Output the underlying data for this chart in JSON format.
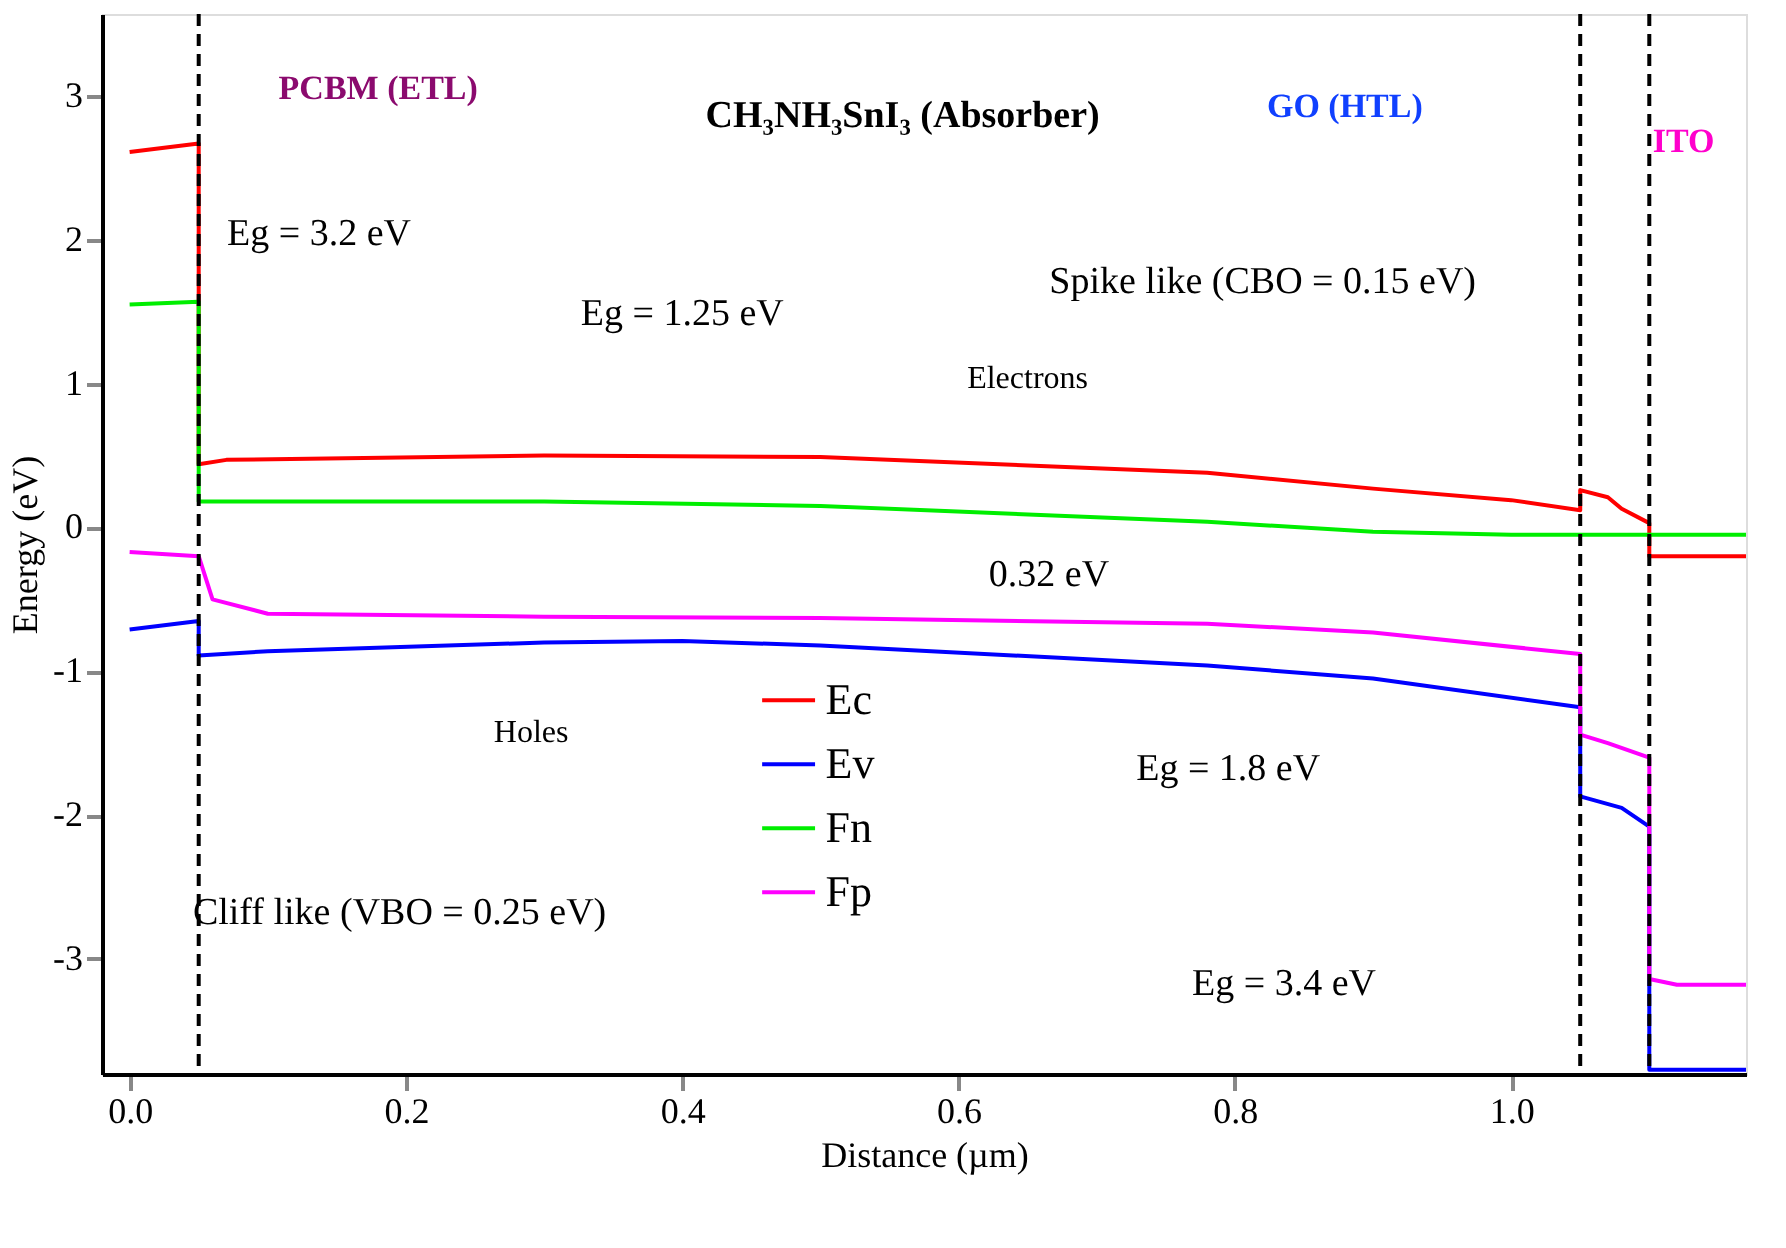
{
  "chart_data": {
    "type": "line",
    "xlabel": "Distance (µm)",
    "ylabel": "Energy (eV)",
    "xlim": [
      -0.02,
      1.17
    ],
    "ylim": [
      -3.8,
      3.57
    ],
    "xticks": [
      {
        "value": 0,
        "label": "0.0"
      },
      0.2,
      0.4,
      0.6,
      0.8,
      {
        "value": 1,
        "label": "1.0"
      }
    ],
    "yticks": [
      -3,
      -2,
      -1,
      0,
      1,
      2,
      3
    ],
    "grid": false,
    "legend": "bottom",
    "line_style": "solid",
    "marker": "none",
    "series": [
      {
        "name": "Ec",
        "color": "#ff0000",
        "x": [
          0,
          0.05,
          0.05,
          0.07,
          0.3,
          0.5,
          0.78,
          0.9,
          1.0,
          1.05,
          1.05,
          1.07,
          1.08,
          1.1,
          1.1,
          1.17
        ],
        "values": [
          2.61,
          2.67,
          0.44,
          0.47,
          0.5,
          0.49,
          0.38,
          0.27,
          0.19,
          0.12,
          0.26,
          0.21,
          0.13,
          0.03,
          -0.2,
          -0.2
        ]
      },
      {
        "name": "Ev",
        "color": "#0000ff",
        "x": [
          0,
          0.05,
          0.05,
          0.1,
          0.3,
          0.4,
          0.5,
          0.78,
          0.9,
          1.05,
          1.05,
          1.08,
          1.1,
          1.1,
          1.17
        ],
        "values": [
          -0.71,
          -0.65,
          -0.89,
          -0.86,
          -0.8,
          -0.79,
          -0.82,
          -0.96,
          -1.05,
          -1.25,
          -1.87,
          -1.95,
          -2.08,
          -3.77,
          -3.77
        ]
      },
      {
        "name": "Fn",
        "color": "#00ee00",
        "x": [
          0,
          0.05,
          0.05,
          0.3,
          0.5,
          0.78,
          0.9,
          1.0,
          1.17
        ],
        "values": [
          1.55,
          1.57,
          0.18,
          0.18,
          0.15,
          0.04,
          -0.03,
          -0.05,
          -0.05
        ]
      },
      {
        "name": "Fp",
        "color": "#ff00ff",
        "x": [
          0,
          0.05,
          0.06,
          0.1,
          0.3,
          0.5,
          0.78,
          0.9,
          1.05,
          1.05,
          1.07,
          1.1,
          1.1,
          1.12,
          1.17
        ],
        "values": [
          -0.17,
          -0.2,
          -0.5,
          -0.6,
          -0.62,
          -0.63,
          -0.67,
          -0.73,
          -0.88,
          -1.44,
          -1.5,
          -1.6,
          -3.14,
          -3.18,
          -3.18
        ]
      }
    ],
    "ref_lines": [
      {
        "axis": "x",
        "value": 0.05,
        "color": "#000000",
        "line_style": "dashed"
      },
      {
        "axis": "x",
        "value": 1.05,
        "color": "#000000",
        "line_style": "dashed"
      },
      {
        "axis": "x",
        "value": 1.1,
        "color": "#000000",
        "line_style": "dashed"
      }
    ],
    "annotations": [
      "PCBM (ETL)",
      "CH₃NH₃SnI₃ (Absorber)",
      "GO (HTL)",
      "ITO",
      "Eg = 3.2 eV",
      "Eg = 1.25 eV",
      "Spike like (CBO = 0.15 eV)",
      "Electrons",
      "0.32 eV",
      "Holes",
      "Cliff like (VBO = 0.25 eV)",
      "Eg = 1.8 eV",
      "Eg = 3.4 eV"
    ]
  }
}
